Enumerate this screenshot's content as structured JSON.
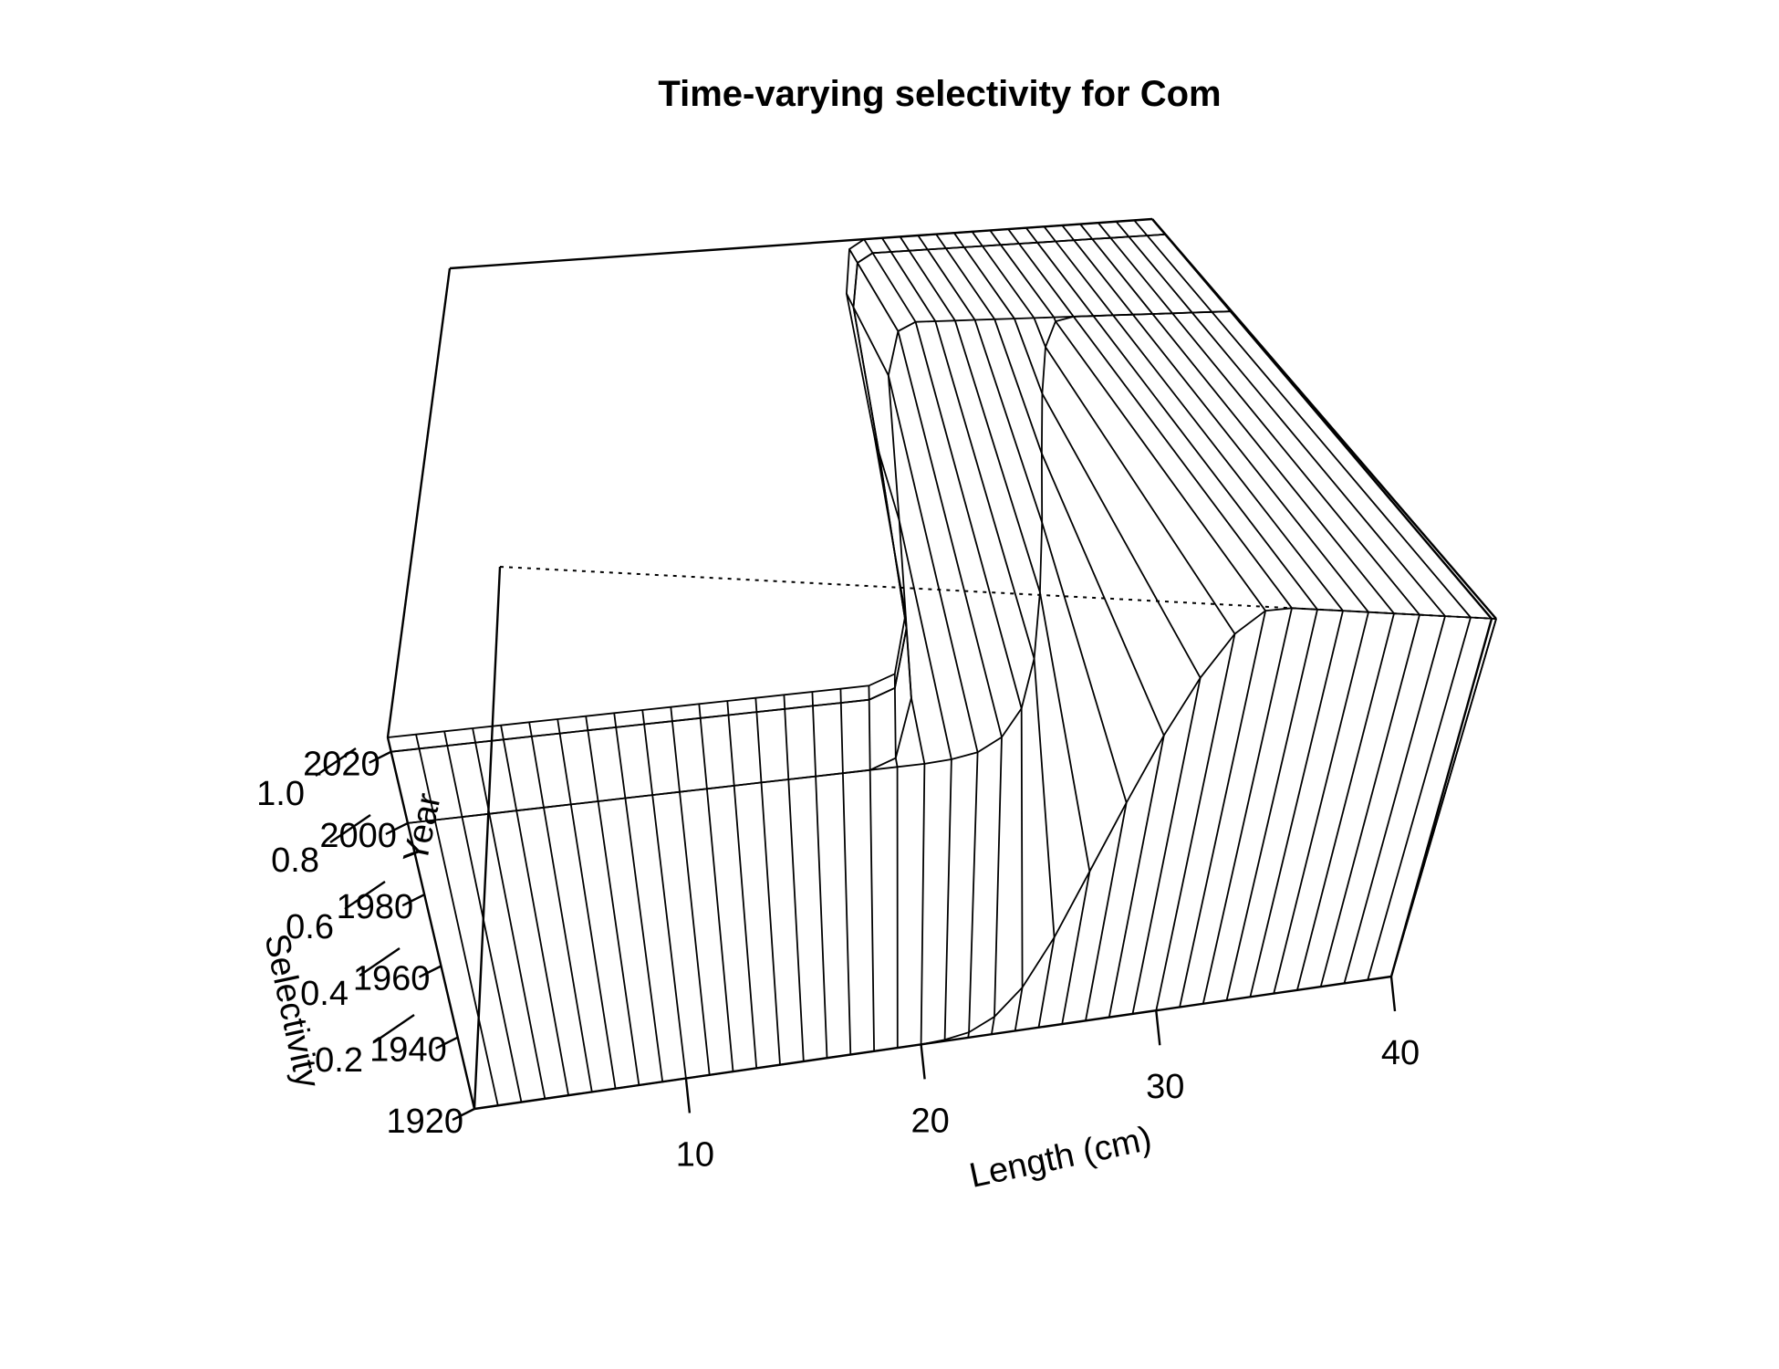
{
  "chart_data": {
    "type": "surface",
    "title": "Time-varying selectivity for Com",
    "xlabel": "Length (cm)",
    "ylabel": "Year",
    "zlabel": "Selectivity",
    "xlim": [
      1,
      40
    ],
    "ylim": [
      1920,
      2024
    ],
    "zlim": [
      0,
      1
    ],
    "x_ticks": [
      10,
      20,
      30,
      40
    ],
    "y_ticks": [
      1920,
      1940,
      1960,
      1980,
      2000,
      2020
    ],
    "z_ticks": [
      "0.2",
      "0.4",
      "0.6",
      "0.8",
      "1.0"
    ],
    "length_bins": [
      1,
      2,
      3,
      4,
      5,
      6,
      7,
      8,
      9,
      10,
      11,
      12,
      13,
      14,
      15,
      16,
      17,
      18,
      19,
      20,
      21,
      22,
      23,
      24,
      25,
      26,
      27,
      28,
      29,
      30,
      31,
      32,
      33,
      34,
      35,
      36,
      37,
      38,
      39,
      40
    ],
    "year_blocks": [
      1920,
      2000,
      2020,
      2024
    ],
    "series": [
      {
        "years": "1920-2000",
        "selectivity": [
          0,
          0,
          0,
          0,
          0,
          0,
          0,
          0,
          0,
          0,
          0,
          0,
          0,
          0,
          0,
          0,
          0,
          0,
          0,
          0,
          0.003,
          0.012,
          0.04,
          0.1,
          0.21,
          0.36,
          0.52,
          0.68,
          0.82,
          0.93,
          0.99,
          1.0,
          1.0,
          1.0,
          1.0,
          1.0,
          1.0,
          1.0,
          1.0,
          1.0
        ]
      },
      {
        "years": "2000-2020",
        "selectivity": [
          0,
          0,
          0,
          0,
          0,
          0,
          0,
          0,
          0,
          0,
          0,
          0,
          0,
          0,
          0,
          0,
          0,
          0,
          0.02,
          0.15,
          0.55,
          0.88,
          0.98,
          1.0,
          1.0,
          1.0,
          1.0,
          1.0,
          1.0,
          1.0,
          1.0,
          1.0,
          1.0,
          1.0,
          1.0,
          1.0,
          1.0,
          1.0,
          1.0,
          1.0
        ]
      },
      {
        "years": "2020-2024",
        "selectivity": [
          0,
          0,
          0,
          0,
          0,
          0,
          0,
          0,
          0,
          0,
          0,
          0,
          0,
          0,
          0,
          0,
          0,
          0,
          0.02,
          0.15,
          0.55,
          0.88,
          0.98,
          1.0,
          1.0,
          1.0,
          1.0,
          1.0,
          1.0,
          1.0,
          1.0,
          1.0,
          1.0,
          1.0,
          1.0,
          1.0,
          1.0,
          1.0,
          1.0,
          1.0
        ]
      }
    ]
  }
}
